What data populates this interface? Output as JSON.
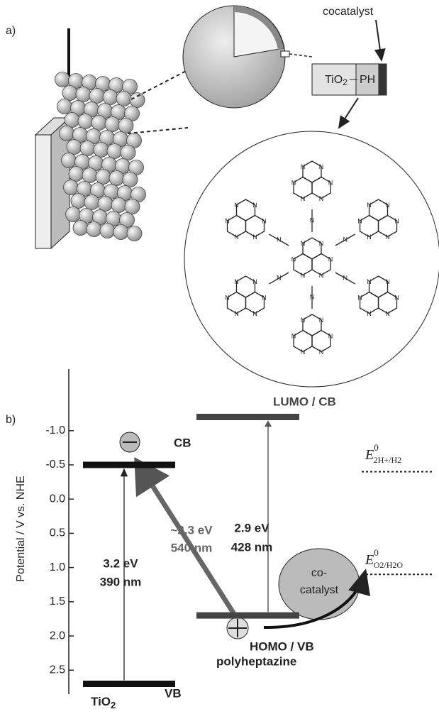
{
  "panel_a": {
    "label": "a)",
    "cocatalyst": "cocatalyst",
    "box": {
      "tio2": {
        "main": "TiO",
        "sub": "2"
      },
      "ph": "PH"
    },
    "atom": "N"
  },
  "panel_b": {
    "label": "b)",
    "y_label": "Potential / V vs. NHE",
    "ylim": [
      -1.9,
      2.85
    ],
    "yticks": [
      {
        "value": -1,
        "label": "-1.0"
      },
      {
        "value": -0.5,
        "label": "-0.5"
      },
      {
        "value": 0,
        "label": "0.0"
      },
      {
        "value": 0.5,
        "label": "0.5"
      },
      {
        "value": 1,
        "label": "1.0"
      },
      {
        "value": 1.5,
        "label": "1.5"
      },
      {
        "value": 2,
        "label": "2.0"
      },
      {
        "value": 2.5,
        "label": "2.5"
      }
    ],
    "levels": {
      "tio2_cb": -0.5,
      "tio2_vb": 2.7,
      "ph_lumo": -1.2,
      "ph_homo": 1.7,
      "e_h2": -0.4,
      "e_o2": 1.1
    },
    "texts": {
      "cb": "CB",
      "lumo_cb": "LUMO / CB",
      "gap_ph_ev": "2.9 eV",
      "gap_ph_nm": "428 nm",
      "gap_vis_ev": "~2.3 eV",
      "gap_vis_nm": "540 nm",
      "gap_tio2_ev": "3.2 eV",
      "gap_tio2_nm": "390 nm",
      "cocat_1": "co-",
      "cocat_2": "catalyst",
      "homo_vb": "HOMO / VB",
      "polyheptazine": "polyheptazine",
      "tio2": {
        "main": "TiO",
        "sub": "2"
      },
      "vb": "VB",
      "e_h2": {
        "e": "E",
        "sup": "0",
        "sub": "2H+/H2"
      },
      "e_o2": {
        "e": "E",
        "sup": "0",
        "sub": "O2/H2O"
      }
    }
  }
}
